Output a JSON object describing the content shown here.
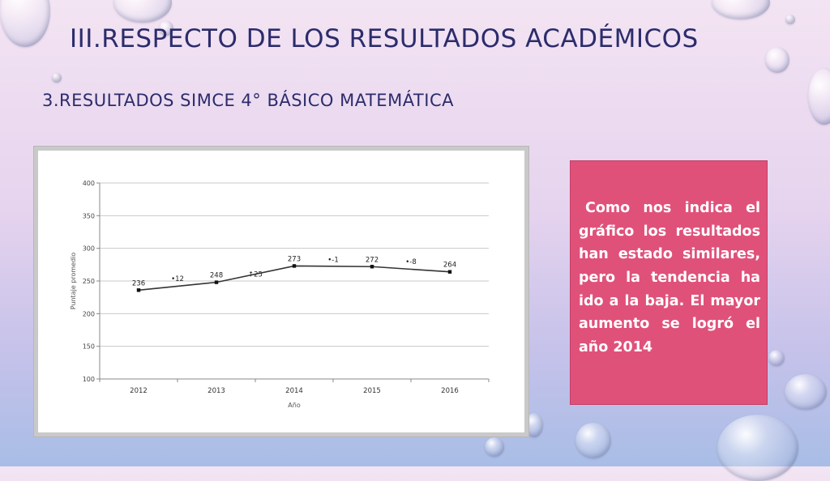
{
  "title": "III.RESPECTO DE LOS RESULTADOS ACADÉMICOS",
  "subtitle": "3.RESULTADOS SIMCE 4° BÁSICO MATEMÁTICA",
  "comment": "Como nos indica el gráfico los resultados han estado similares, pero la tendencia ha ido a la baja. El mayor aumento se logró el año 2014",
  "chart_data": {
    "type": "line",
    "title": "",
    "xlabel": "Año",
    "ylabel": "Puntaje promedio",
    "ylim": [
      100,
      400
    ],
    "yticks": [
      100,
      150,
      200,
      250,
      300,
      350,
      400
    ],
    "grid": true,
    "categories": [
      "2012",
      "2013",
      "2014",
      "2015",
      "2016"
    ],
    "values": [
      236,
      248,
      273,
      272,
      264
    ],
    "value_labels": [
      "236",
      "248",
      "273",
      "272",
      "264"
    ],
    "change_labels": [
      {
        "text": "•12",
        "between": [
          "2012",
          "2013"
        ],
        "y": 250
      },
      {
        "text": "↑25",
        "between": [
          "2013",
          "2014"
        ],
        "y": 257
      },
      {
        "text": "•-1",
        "between": [
          "2014",
          "2015"
        ],
        "y": 279
      },
      {
        "text": "•-8",
        "between": [
          "2015",
          "2016"
        ],
        "y": 276
      }
    ],
    "colors": {
      "line": "#333333",
      "grid": "#c8c8c8"
    }
  }
}
